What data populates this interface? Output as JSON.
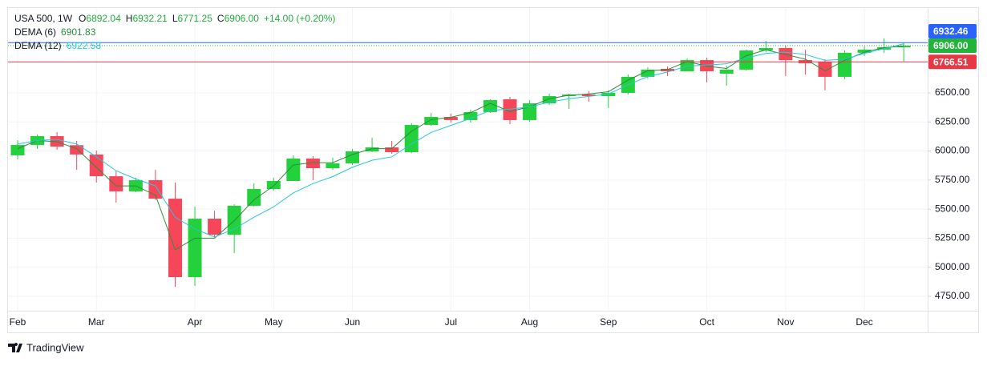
{
  "header": {
    "symbol": "USA 500, 1W",
    "ohlc": [
      {
        "key": "O",
        "value": "6892.04"
      },
      {
        "key": "H",
        "value": "6932.21"
      },
      {
        "key": "L",
        "value": "6771.25"
      },
      {
        "key": "C",
        "value": "6906.00"
      }
    ],
    "change": "+14.00 (+0.20%)"
  },
  "chart_data": {
    "type": "candlestick",
    "categories": [
      "Feb",
      null,
      null,
      null,
      "Mar",
      null,
      null,
      null,
      null,
      "Apr",
      null,
      null,
      null,
      "May",
      null,
      null,
      null,
      "Jun",
      null,
      null,
      null,
      null,
      "Jul",
      null,
      null,
      null,
      "Aug",
      null,
      null,
      null,
      "Sep",
      null,
      null,
      null,
      null,
      "Oct",
      null,
      null,
      null,
      "Nov",
      null,
      null,
      null,
      "Dec",
      null,
      null
    ],
    "open": [
      5963,
      6052,
      6128,
      6050,
      5970,
      5783,
      5653,
      5749,
      5590,
      4915,
      5418,
      5280,
      5529,
      5673,
      5742,
      5935,
      5852,
      5894,
      5997,
      6031,
      5990,
      6224,
      6293,
      6266,
      6335,
      6445,
      6266,
      6410,
      6472,
      6486,
      6472,
      6500,
      6638,
      6707,
      6686,
      6782,
      6665,
      6700,
      6865,
      6886,
      6782,
      6769,
      6638,
      6845,
      6872,
      6892.04
    ],
    "high": [
      6093,
      6142,
      6162,
      6087,
      6004,
      5825,
      5770,
      5838,
      5728,
      5522,
      5487,
      5542,
      5721,
      5770,
      5963,
      5956,
      5942,
      6018,
      6114,
      6087,
      6238,
      6328,
      6321,
      6355,
      6445,
      6466,
      6438,
      6493,
      6493,
      6514,
      6521,
      6658,
      6720,
      6727,
      6796,
      6803,
      6734,
      6872,
      6948,
      6906,
      6872,
      6789,
      6865,
      6900,
      6969,
      6932.21
    ],
    "low": [
      5928,
      6018,
      6011,
      5838,
      5728,
      5556,
      5646,
      5577,
      4833,
      4840,
      5260,
      5122,
      5522,
      5659,
      5742,
      5749,
      5838,
      5880,
      5990,
      5976,
      5983,
      6217,
      6245,
      6245,
      6328,
      6231,
      6252,
      6397,
      6362,
      6424,
      6369,
      6486,
      6624,
      6645,
      6693,
      6590,
      6562,
      6693,
      6851,
      6645,
      6658,
      6521,
      6617,
      6817,
      6845,
      6771.25
    ],
    "close": [
      6052,
      6128,
      6038,
      5970,
      5783,
      5653,
      5749,
      5590,
      4915,
      5418,
      5280,
      5529,
      5673,
      5742,
      5935,
      5852,
      5894,
      5997,
      6031,
      5990,
      6224,
      6293,
      6266,
      6335,
      6438,
      6266,
      6410,
      6472,
      6486,
      6472,
      6500,
      6638,
      6700,
      6686,
      6782,
      6686,
      6700,
      6865,
      6886,
      6782,
      6755,
      6638,
      6845,
      6872,
      6893,
      6906
    ],
    "up_color": "#22d13b",
    "down_color": "#f6475a",
    "series": [
      {
        "name": "DEMA (6)",
        "color": "#2e8b3e",
        "values": [
          6020,
          6090,
          6080,
          6020,
          5860,
          5700,
          5700,
          5620,
          5150,
          5250,
          5250,
          5400,
          5580,
          5700,
          5880,
          5900,
          5900,
          5970,
          6020,
          6020,
          6170,
          6270,
          6290,
          6330,
          6410,
          6340,
          6380,
          6450,
          6480,
          6490,
          6510,
          6610,
          6690,
          6700,
          6770,
          6730,
          6710,
          6820,
          6870,
          6830,
          6790,
          6690,
          6780,
          6850,
          6890,
          6901.83
        ]
      },
      {
        "name": "DEMA (12)",
        "color": "#26c6da",
        "values": [
          6060,
          6090,
          6100,
          6060,
          5950,
          5830,
          5760,
          5700,
          5430,
          5330,
          5260,
          5330,
          5430,
          5520,
          5640,
          5720,
          5780,
          5860,
          5920,
          5950,
          6060,
          6160,
          6220,
          6280,
          6350,
          6360,
          6380,
          6420,
          6450,
          6470,
          6490,
          6570,
          6640,
          6680,
          6730,
          6740,
          6750,
          6800,
          6840,
          6850,
          6830,
          6780,
          6790,
          6840,
          6880,
          6922.58
        ]
      }
    ],
    "ylim": [
      4626,
      7230
    ],
    "yticks": [
      {
        "value": 4750,
        "label": "4750.00"
      },
      {
        "value": 5000,
        "label": "5000.00"
      },
      {
        "value": 5250,
        "label": "5250.00"
      },
      {
        "value": 5500,
        "label": "5500.00"
      },
      {
        "value": 5750,
        "label": "5750.00"
      },
      {
        "value": 6000,
        "label": "6000.00"
      },
      {
        "value": 6250,
        "label": "6250.00"
      },
      {
        "value": 6500,
        "label": "6500.00"
      }
    ],
    "price_lines": [
      {
        "value": 6932.46,
        "label": "6932.46",
        "color": "#2962ff",
        "dash": false
      },
      {
        "value": 6906,
        "label": "6906.00",
        "color": "#22b33a",
        "dash": true
      },
      {
        "value": 6766.51,
        "label": "6766.51",
        "color": "#e53945",
        "dash": false
      }
    ],
    "grid": true
  },
  "footer": {
    "brand": "TradingView"
  }
}
